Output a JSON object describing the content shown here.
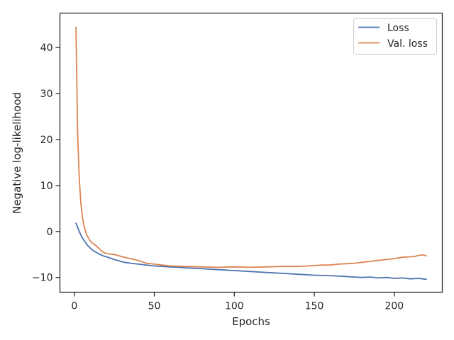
{
  "chart_data": {
    "type": "line",
    "title": "",
    "xlabel": "Epochs",
    "ylabel": "Negative log-likelihood",
    "xlim": [
      -9,
      230
    ],
    "ylim": [
      -13.2,
      47.5
    ],
    "xticks": [
      0,
      50,
      100,
      150,
      200
    ],
    "yticks": [
      -10,
      0,
      10,
      20,
      30,
      40
    ],
    "ytick_labels": [
      "−10",
      "0",
      "10",
      "20",
      "30",
      "40"
    ],
    "grid": false,
    "legend_position": "top-right",
    "colors": {
      "loss": "#4c72b0",
      "val_loss": "#dd8452",
      "axes": "#262626"
    },
    "series": [
      {
        "name": "Loss",
        "x": [
          1,
          2,
          3,
          4,
          5,
          6,
          8,
          10,
          12,
          15,
          18,
          20,
          25,
          30,
          35,
          40,
          50,
          60,
          70,
          80,
          90,
          100,
          110,
          120,
          130,
          140,
          150,
          160,
          170,
          175,
          180,
          185,
          190,
          195,
          200,
          205,
          210,
          215,
          220
        ],
        "y": [
          1.8,
          1.0,
          0.0,
          -0.7,
          -1.4,
          -1.9,
          -2.9,
          -3.6,
          -4.2,
          -4.8,
          -5.3,
          -5.5,
          -6.1,
          -6.6,
          -6.9,
          -7.1,
          -7.5,
          -7.7,
          -7.9,
          -8.1,
          -8.3,
          -8.5,
          -8.7,
          -8.9,
          -9.1,
          -9.3,
          -9.5,
          -9.6,
          -9.8,
          -9.9,
          -10.0,
          -9.9,
          -10.1,
          -10.0,
          -10.2,
          -10.1,
          -10.3,
          -10.2,
          -10.4
        ]
      },
      {
        "name": "Val. loss",
        "x": [
          1,
          2,
          3,
          4,
          5,
          6,
          7,
          8,
          9,
          10,
          12,
          14,
          16,
          18,
          20,
          25,
          30,
          35,
          40,
          45,
          50,
          55,
          60,
          70,
          80,
          90,
          100,
          110,
          120,
          130,
          140,
          150,
          155,
          160,
          165,
          170,
          175,
          180,
          185,
          190,
          195,
          200,
          205,
          210,
          213,
          215,
          218,
          220
        ],
        "y": [
          44.4,
          22.0,
          12.0,
          6.5,
          3.2,
          1.3,
          0.0,
          -0.9,
          -1.5,
          -2.1,
          -2.7,
          -3.2,
          -3.9,
          -4.5,
          -4.8,
          -5.0,
          -5.5,
          -5.9,
          -6.3,
          -6.9,
          -7.1,
          -7.3,
          -7.5,
          -7.6,
          -7.7,
          -7.8,
          -7.7,
          -7.8,
          -7.7,
          -7.6,
          -7.6,
          -7.4,
          -7.3,
          -7.3,
          -7.1,
          -7.0,
          -6.9,
          -6.7,
          -6.5,
          -6.3,
          -6.1,
          -5.9,
          -5.6,
          -5.5,
          -5.4,
          -5.2,
          -5.1,
          -5.3
        ]
      }
    ]
  }
}
